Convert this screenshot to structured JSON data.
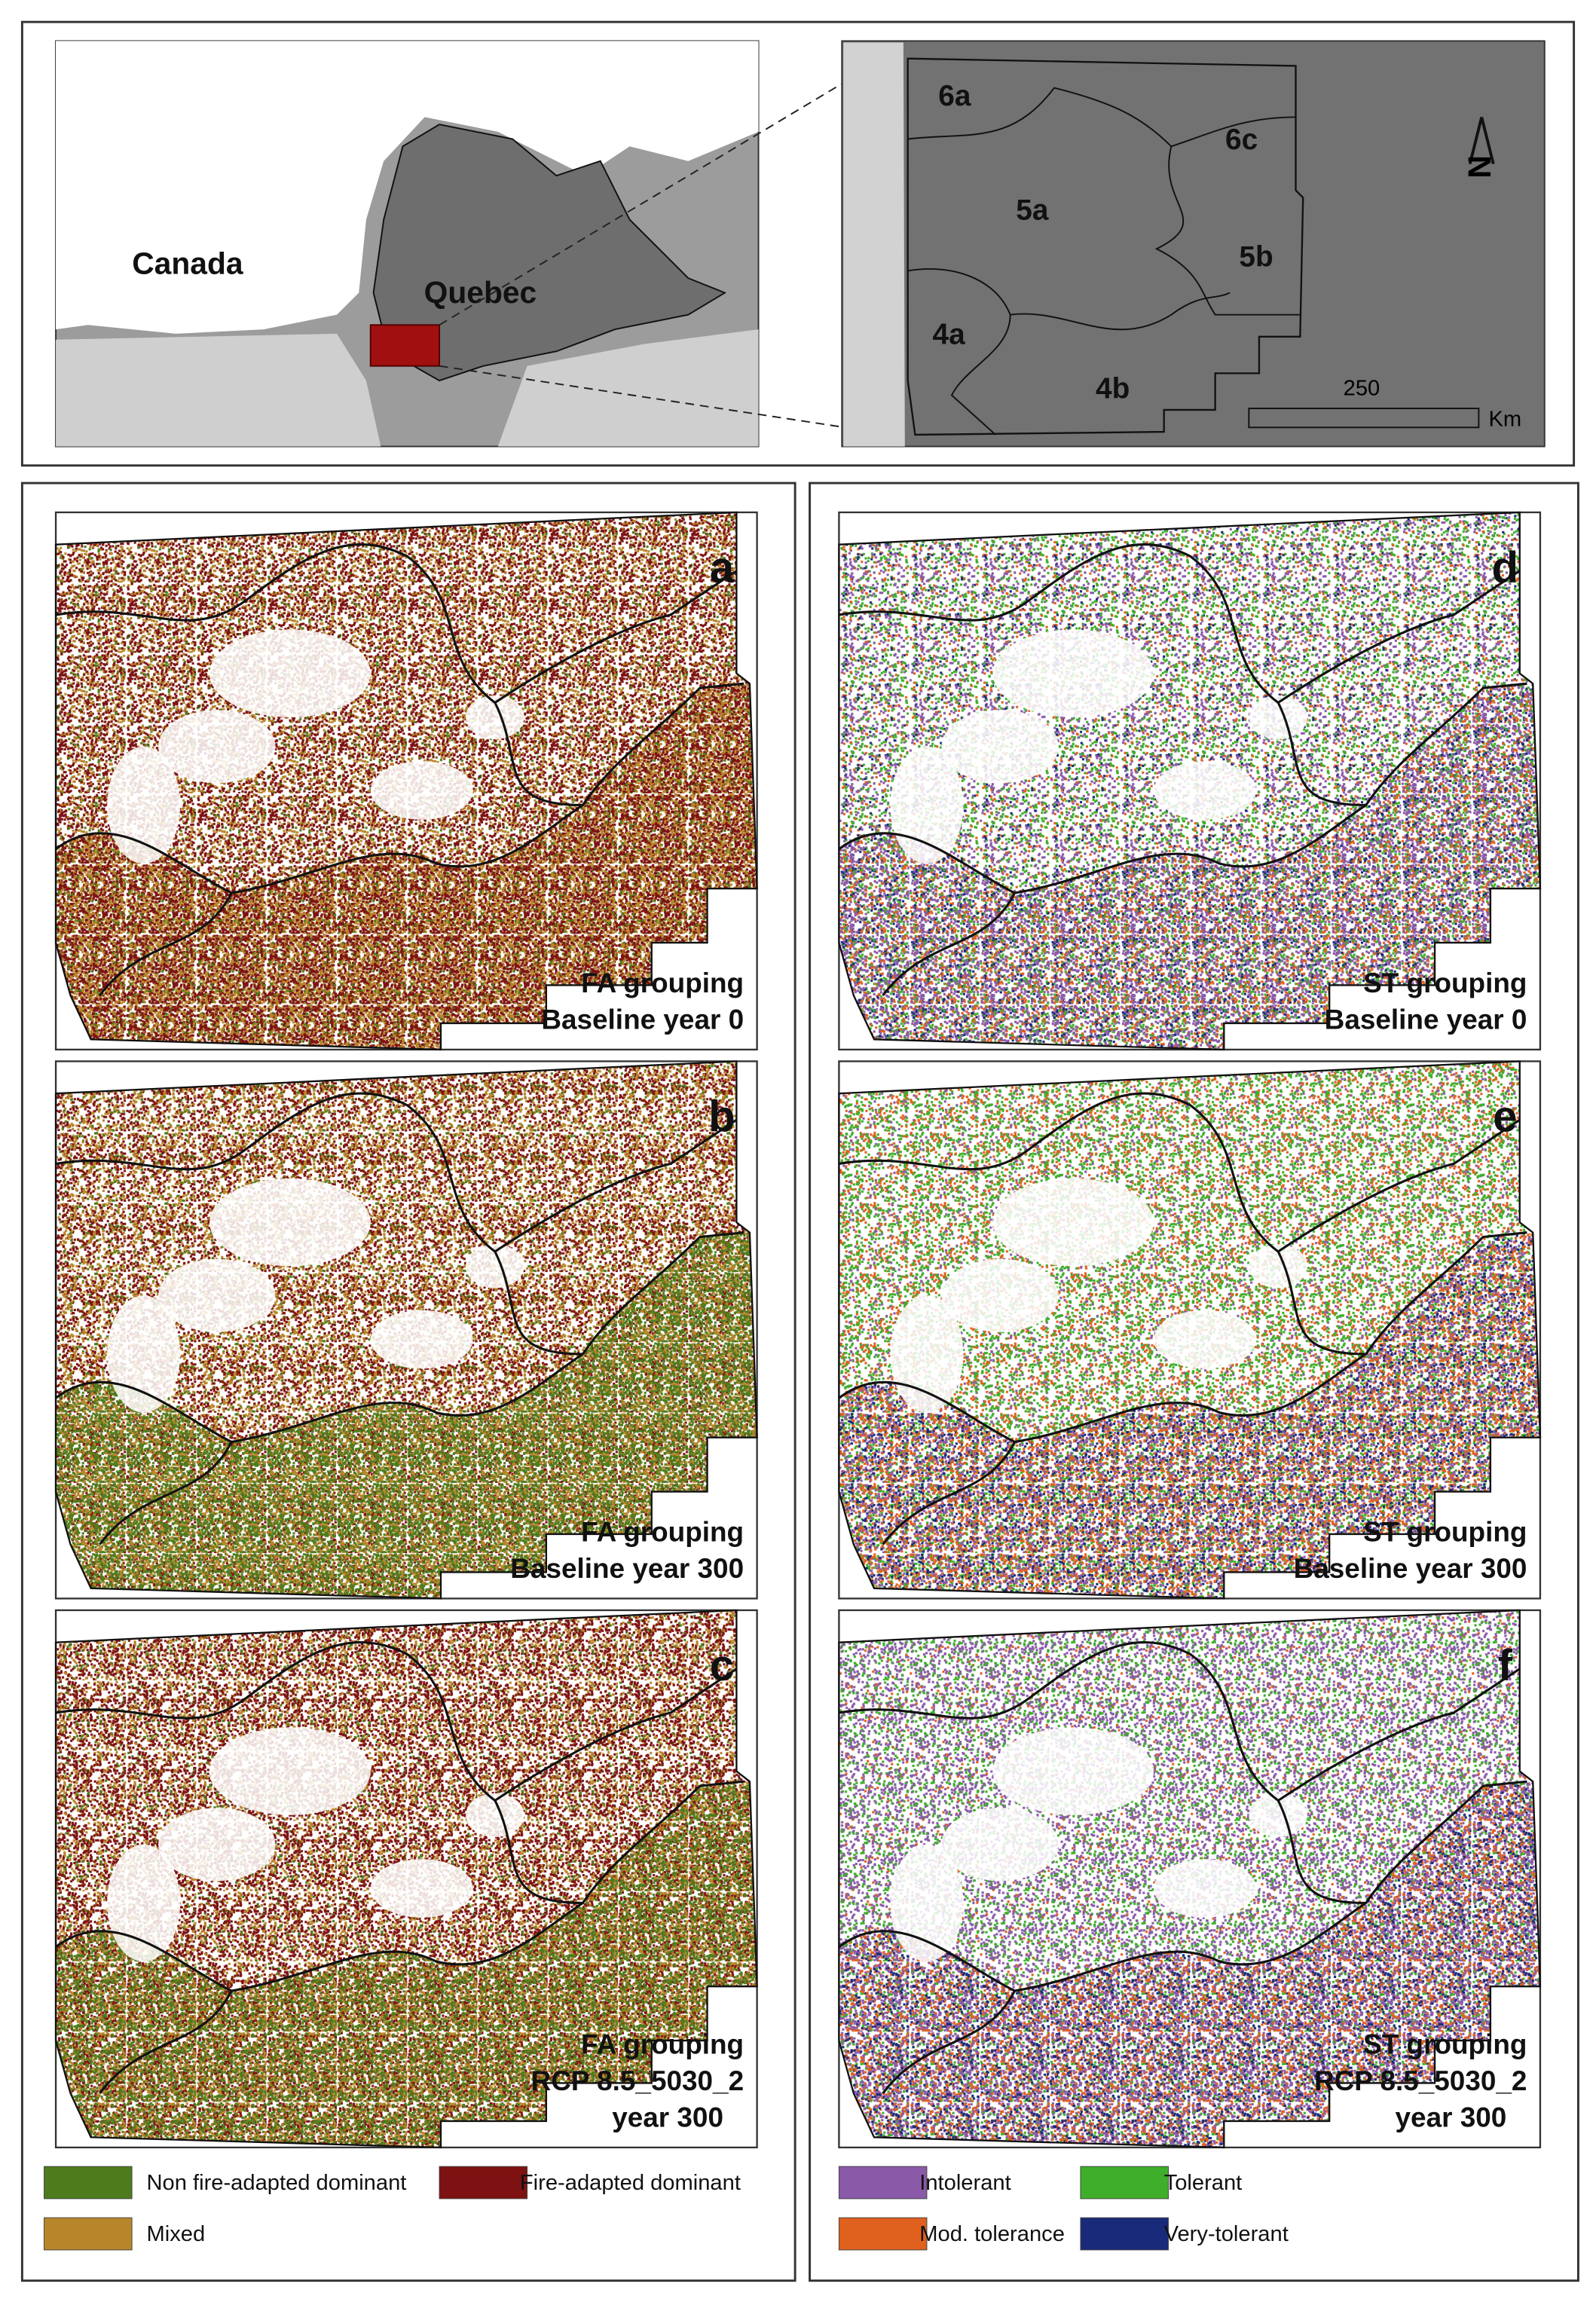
{
  "overview": {
    "labels": [
      "Canada",
      "Quebec"
    ]
  },
  "inset": {
    "regions": [
      "6a",
      "5a",
      "6c",
      "5b",
      "4a",
      "4b"
    ],
    "north": "N",
    "scale_label": "250",
    "unit": "Km"
  },
  "panels": [
    {
      "letter": "a",
      "caption": [
        "FA grouping",
        "Baseline year 0"
      ]
    },
    {
      "letter": "b",
      "caption": [
        "FA grouping",
        "Baseline year 300"
      ]
    },
    {
      "letter": "c",
      "caption": [
        "FA grouping",
        "RCP 8.5_5030_2",
        "year 300"
      ]
    },
    {
      "letter": "d",
      "caption": [
        "ST grouping",
        "Baseline year 0"
      ]
    },
    {
      "letter": "e",
      "caption": [
        "ST grouping",
        "Baseline year 300"
      ]
    },
    {
      "letter": "f",
      "caption": [
        "ST grouping",
        "RCP 8.5_5030_2",
        "year 300"
      ]
    }
  ],
  "legend_fa": [
    "Non fire-adapted dominant",
    "Fire-adapted dominant",
    "Mixed"
  ],
  "legend_st": [
    "Intolerant",
    "Tolerant",
    "Mod. tolerance",
    "Very-tolerant"
  ]
}
